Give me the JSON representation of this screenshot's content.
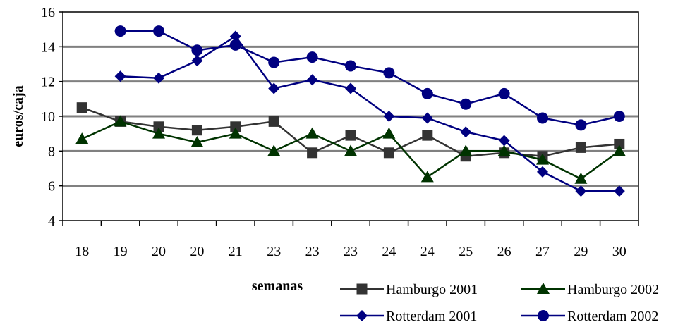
{
  "chart_data": {
    "type": "line",
    "title": "",
    "xlabel": "semanas",
    "ylabel": "euros/caja",
    "categories": [
      "18",
      "19",
      "20",
      "20",
      "21",
      "23",
      "23",
      "23",
      "24",
      "24",
      "25",
      "26",
      "27",
      "29",
      "30"
    ],
    "ylim": [
      4,
      16
    ],
    "yticks": [
      4,
      6,
      8,
      10,
      12,
      14,
      16
    ],
    "grid": "horizontal",
    "legend_position": "bottom-right",
    "series": [
      {
        "name": "Hamburgo 2001",
        "color": "#333333",
        "marker": "square",
        "values": [
          10.5,
          9.7,
          9.4,
          9.2,
          9.4,
          9.7,
          7.9,
          8.9,
          7.9,
          8.9,
          7.7,
          7.9,
          7.7,
          8.2,
          8.4
        ]
      },
      {
        "name": "Hamburgo 2002",
        "color": "#003300",
        "marker": "triangle",
        "values": [
          8.7,
          9.7,
          9.0,
          8.5,
          9.0,
          8.0,
          9.0,
          8.0,
          9.0,
          6.5,
          8.0,
          8.0,
          7.5,
          6.4,
          8.0
        ]
      },
      {
        "name": "Rotterdam 2001",
        "color": "#000080",
        "marker": "diamond",
        "values": [
          null,
          12.3,
          12.2,
          13.2,
          14.6,
          11.6,
          12.1,
          11.6,
          10.0,
          9.9,
          9.1,
          8.6,
          6.8,
          5.7,
          5.7
        ]
      },
      {
        "name": "Rotterdam 2002",
        "color": "#000080",
        "marker": "circle",
        "values": [
          null,
          14.9,
          14.9,
          13.8,
          14.1,
          13.1,
          13.4,
          12.9,
          12.5,
          11.3,
          10.7,
          11.3,
          9.9,
          9.5,
          10.0
        ]
      }
    ]
  }
}
